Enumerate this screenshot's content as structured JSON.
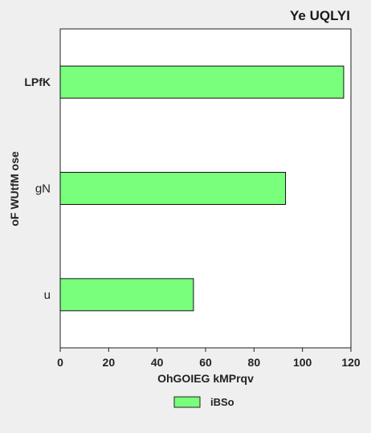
{
  "chart_data": {
    "type": "bar",
    "orientation": "horizontal",
    "title": "Ye UQLYI",
    "xlabel": "OhGOIEG kMPrqv",
    "ylabel": "oF WUtfM ose",
    "categories": [
      "u",
      "gN",
      "LPfK"
    ],
    "series": [
      {
        "name": "iBSo",
        "values": [
          55,
          93,
          117
        ]
      }
    ],
    "xlim": [
      0,
      120
    ],
    "xticks": [
      0,
      20,
      40,
      60,
      80,
      100,
      120
    ],
    "grid": false,
    "legend_position": "bottom-center",
    "colors": {
      "bar": "#79ff7c",
      "bar_edge": "#111111",
      "plot_bg": "#ffffff",
      "page_bg": "#efefef"
    }
  }
}
